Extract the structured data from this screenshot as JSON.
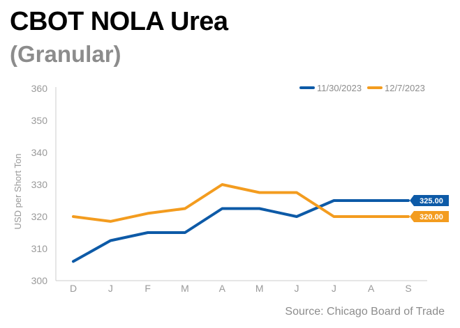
{
  "title": "CBOT NOLA Urea",
  "subtitle": "(Granular)",
  "source": "Source: Chicago Board of Trade",
  "chart_data": {
    "type": "line",
    "title": "CBOT NOLA Urea",
    "subtitle": "(Granular)",
    "xlabel": "",
    "ylabel": "USD per Short Ton",
    "ylim": [
      300,
      360
    ],
    "yticks": [
      300,
      310,
      320,
      330,
      340,
      350,
      360
    ],
    "categories": [
      "D",
      "J",
      "F",
      "M",
      "A",
      "M",
      "J",
      "J",
      "A",
      "S"
    ],
    "grid": false,
    "legend_position": "top-right",
    "series": [
      {
        "name": "11/30/2023",
        "color": "#0d5aa7",
        "values": [
          306,
          312.5,
          315,
          315,
          322.5,
          322.5,
          320,
          325,
          325,
          325
        ],
        "end_label": "325.00"
      },
      {
        "name": "12/7/2023",
        "color": "#f39c1f",
        "values": [
          320,
          318.5,
          321,
          322.5,
          330,
          327.5,
          327.5,
          320,
          320,
          320
        ],
        "end_label": "320.00"
      }
    ]
  }
}
